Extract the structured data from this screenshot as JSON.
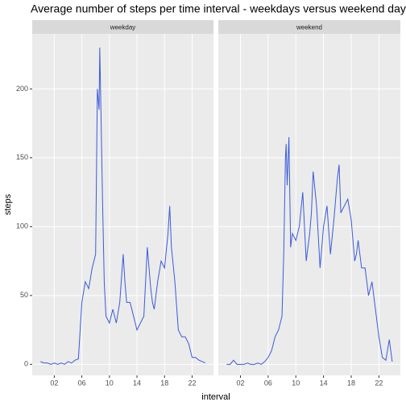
{
  "chart_data": {
    "type": "line",
    "title": "Average number of steps per time interval - weekdays versus weekend days",
    "x_label": "interval",
    "y_label": "steps",
    "color": "#3a5bd9",
    "xlim": [
      -1.2,
      25.1
    ],
    "xticks": [
      {
        "value": 2,
        "label": "02"
      },
      {
        "value": 6,
        "label": "06"
      },
      {
        "value": 10,
        "label": "10"
      },
      {
        "value": 14,
        "label": "14"
      },
      {
        "value": 18,
        "label": "18"
      },
      {
        "value": 22,
        "label": "22"
      }
    ],
    "ylim": [
      -8,
      240
    ],
    "yticks": [
      0,
      50,
      100,
      150,
      200
    ],
    "grid": true,
    "x": [
      0,
      0.5,
      1,
      1.5,
      2,
      2.5,
      3,
      3.5,
      4,
      4.5,
      5,
      5.5,
      6,
      6.5,
      7,
      7.5,
      8,
      8.25,
      8.5,
      8.6,
      8.75,
      9,
      9.25,
      9.5,
      10,
      10.5,
      11,
      11.5,
      12,
      12.25,
      12.5,
      13,
      13.5,
      14,
      14.5,
      15,
      15.5,
      16,
      16.25,
      16.5,
      17,
      17.5,
      18,
      18.5,
      18.75,
      19,
      19.5,
      20,
      20.5,
      21,
      21.5,
      22,
      22.5,
      23,
      23.5,
      23.92
    ],
    "series": [
      {
        "name": "weekday",
        "values": [
          2,
          1,
          1,
          0,
          1,
          0,
          1,
          0,
          2,
          1,
          3,
          4,
          45,
          60,
          55,
          70,
          80,
          200,
          185,
          230,
          190,
          120,
          60,
          35,
          30,
          40,
          30,
          45,
          80,
          60,
          45,
          45,
          35,
          25,
          30,
          35,
          85,
          55,
          45,
          40,
          60,
          75,
          70,
          95,
          115,
          85,
          60,
          25,
          20,
          20,
          15,
          5,
          5,
          3,
          2,
          1
        ]
      },
      {
        "name": "weekend",
        "values": [
          0,
          0,
          3,
          0,
          0,
          0,
          1,
          0,
          0,
          1,
          0,
          2,
          5,
          10,
          20,
          25,
          35,
          80,
          150,
          160,
          130,
          165,
          85,
          95,
          90,
          100,
          125,
          75,
          95,
          110,
          140,
          115,
          70,
          100,
          115,
          80,
          105,
          135,
          145,
          110,
          115,
          120,
          105,
          75,
          80,
          90,
          70,
          70,
          50,
          60,
          40,
          20,
          5,
          3,
          18,
          2
        ]
      }
    ]
  }
}
